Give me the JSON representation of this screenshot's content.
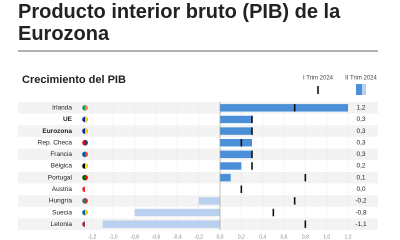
{
  "chart_data": {
    "type": "bar",
    "title_lines": [
      "Producto interior bruto (PIB) de la",
      "Eurozona"
    ],
    "subtitle": "Crecimiento del PIB",
    "categories": [
      "Irlanda",
      "UE",
      "Eurozona",
      "Rep. Checa",
      "Francia",
      "Bélgica",
      "Portugal",
      "Austria",
      "Hungría",
      "Suecia",
      "Letonia"
    ],
    "bold_categories": [
      "UE",
      "Eurozona"
    ],
    "series": [
      {
        "name": "II Trim 2024",
        "colors": [
          "#4a8fd8",
          "#4a8fd8",
          "#4a8fd8",
          "#4a8fd8",
          "#4a8fd8",
          "#4a8fd8",
          "#4a8fd8",
          "#4a8fd8",
          "#b9d1ee",
          "#b9d1ee",
          "#b9d1ee"
        ],
        "values": [
          1.2,
          0.3,
          0.3,
          0.3,
          0.3,
          0.2,
          0.1,
          0.0,
          -0.2,
          -0.8,
          -1.1
        ],
        "value_labels": [
          "1,2",
          "0,3",
          "0,3",
          "0,3",
          "0,3",
          "0,2",
          "0,1",
          "0,0",
          "-0,2",
          "-0,8",
          "-1,1"
        ]
      },
      {
        "name": "I Trim 2024",
        "color": "#111111",
        "values": [
          0.7,
          0.3,
          0.3,
          0.2,
          0.3,
          0.3,
          0.8,
          0.2,
          0.7,
          0.5,
          0.8
        ]
      }
    ],
    "xlim": [
      -1.2,
      1.2
    ],
    "xticks": [
      {
        "value": -1.2,
        "label": "-1,2"
      },
      {
        "value": -1.0,
        "label": "-1,0"
      },
      {
        "value": -0.8,
        "label": "-0,8"
      },
      {
        "value": -0.6,
        "label": "-0,6"
      },
      {
        "value": -0.4,
        "label": "-0,4"
      },
      {
        "value": -0.2,
        "label": "-0,2"
      },
      {
        "value": 0,
        "label": "0,0"
      },
      {
        "value": 0.2,
        "label": "0,2"
      },
      {
        "value": 0.4,
        "label": "0,4"
      },
      {
        "value": 0.6,
        "label": "0,6"
      },
      {
        "value": 0.8,
        "label": "0,8"
      },
      {
        "value": 1.0,
        "label": "1,0"
      },
      {
        "value": 1.2,
        "label": "1,2"
      }
    ],
    "grid": true
  }
}
